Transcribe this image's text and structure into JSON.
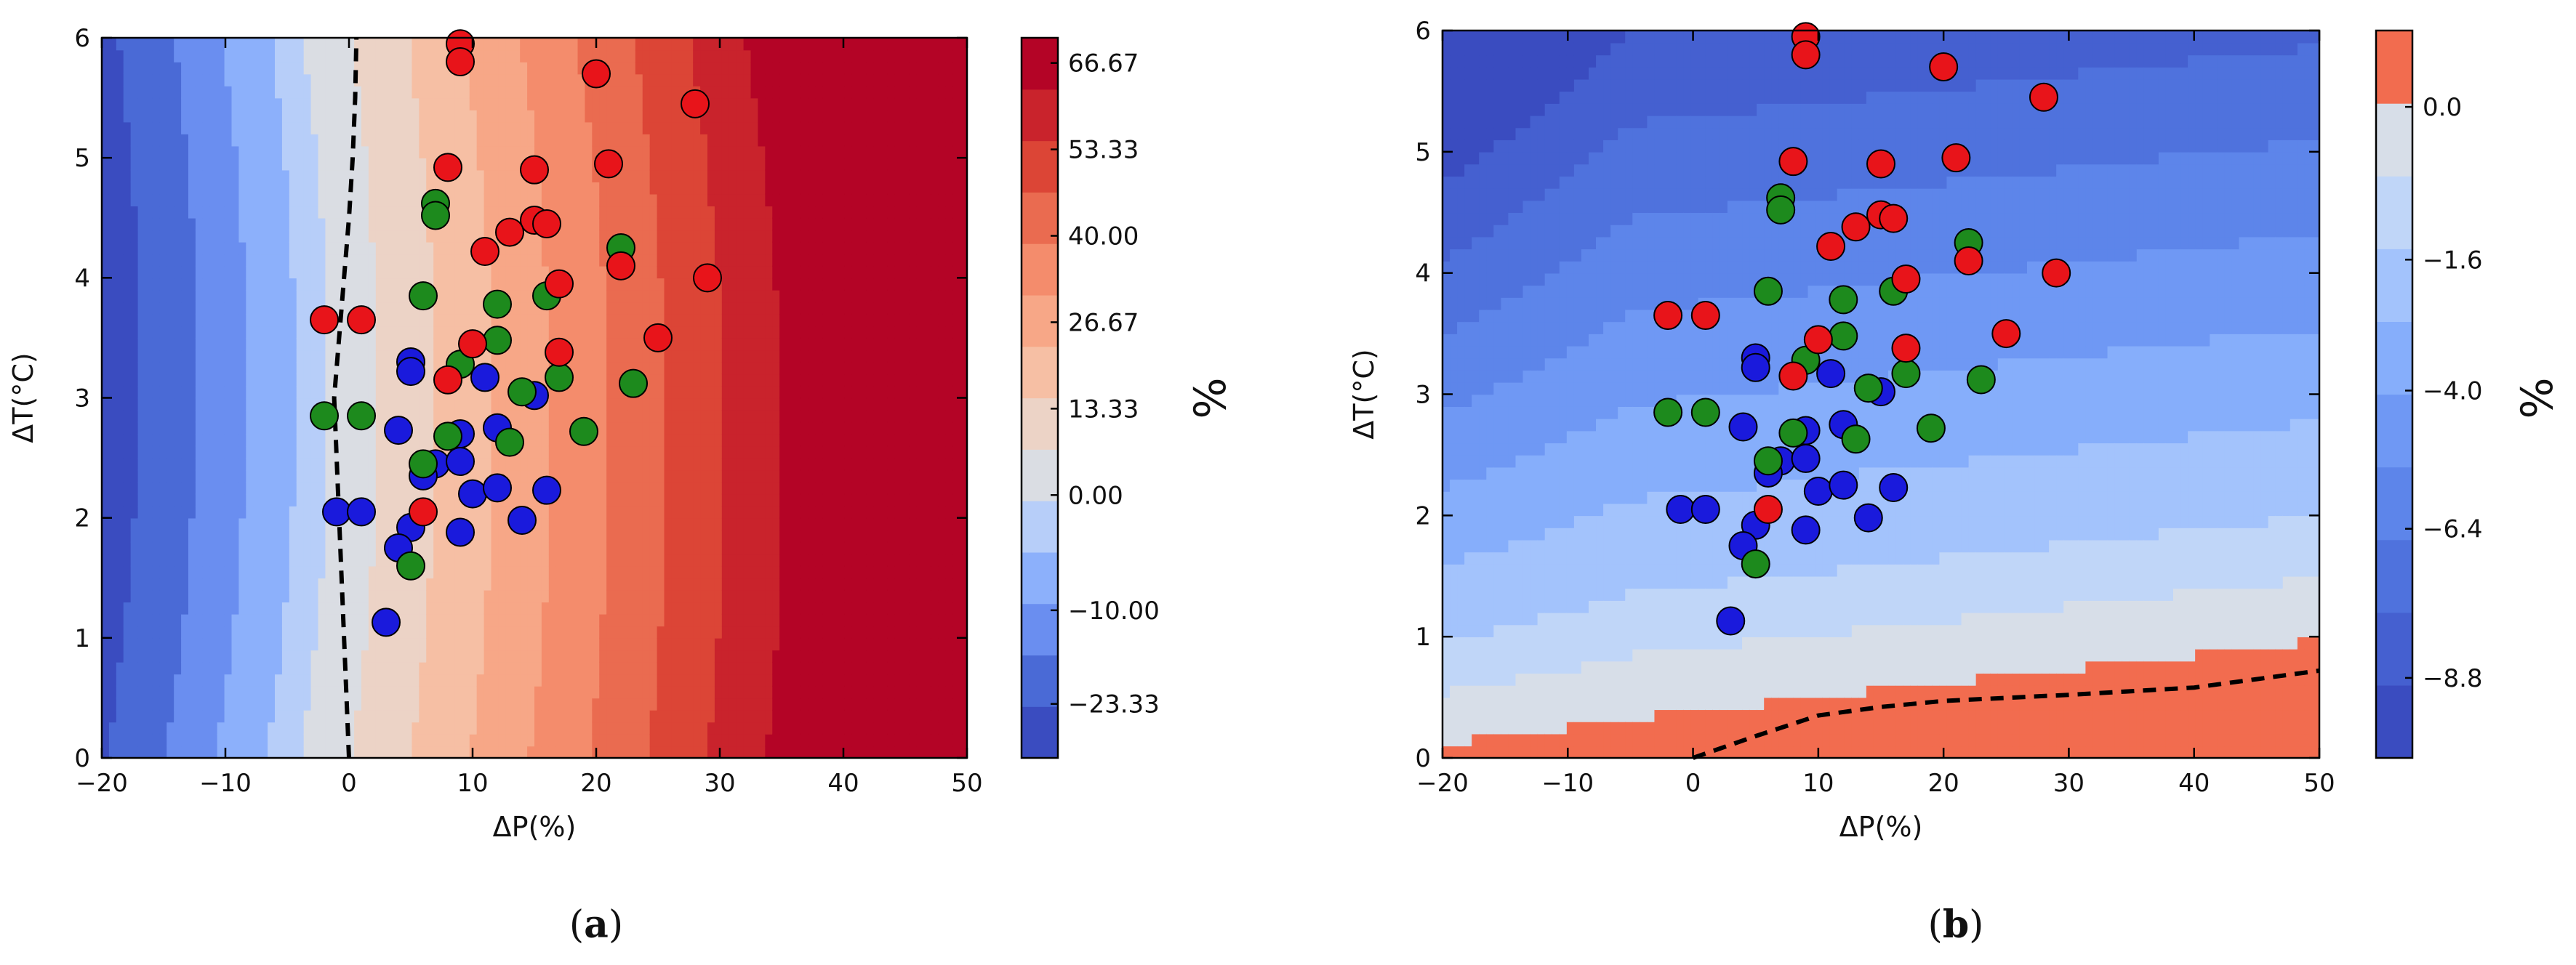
{
  "colors": {
    "levels": [
      "#3a4cc0",
      "#4a6ad6",
      "#6a8ef0",
      "#8cb0fb",
      "#b7cef9",
      "#dadde3",
      "#ecd3c6",
      "#f6bfa4",
      "#f7a787",
      "#f48c6c",
      "#ea6b50",
      "#dc4536",
      "#c9232c",
      "#b40426"
    ],
    "diff_pos": "#f26c4f",
    "green": "#1d8a1d",
    "red": "#e8141a",
    "blue": "#1a1adc"
  },
  "chart_data": [
    {
      "id": "a",
      "type": "contour",
      "caption": "a",
      "xlabel": "ΔP(%)",
      "ylabel": "ΔT(°C)",
      "xlim": [
        -20,
        50
      ],
      "ylim": [
        0,
        6
      ],
      "xticks": [
        -20,
        -10,
        0,
        10,
        20,
        30,
        40,
        50
      ],
      "yticks": [
        0,
        1,
        2,
        3,
        4,
        5,
        6
      ],
      "xtick_labels": [
        "−20",
        "−10",
        "0",
        "10",
        "20",
        "30",
        "40",
        "50"
      ],
      "ytick_labels": [
        "0",
        "1",
        "2",
        "3",
        "4",
        "5",
        "6"
      ],
      "colorbar_label": "%",
      "colorbar_ticks": [
        "66.67",
        "53.33",
        "40.00",
        "26.67",
        "13.33",
        "0.00",
        "−10.00",
        "−23.33"
      ],
      "zero_contour": [
        [
          0,
          0
        ],
        [
          -0.2,
          0.5
        ],
        [
          -0.4,
          1
        ],
        [
          -0.6,
          1.5
        ],
        [
          -0.8,
          2
        ],
        [
          -1,
          2.5
        ],
        [
          -1.2,
          3
        ],
        [
          -0.8,
          3.5
        ],
        [
          -0.4,
          4
        ],
        [
          0,
          4.5
        ],
        [
          0.3,
          5
        ],
        [
          0.5,
          5.5
        ],
        [
          0.6,
          6
        ]
      ]
    },
    {
      "id": "b",
      "type": "contour",
      "caption": "b",
      "xlabel": "ΔP(%)",
      "ylabel": "ΔT(°C)",
      "xlim": [
        -20,
        50
      ],
      "ylim": [
        0,
        6
      ],
      "xticks": [
        -20,
        -10,
        0,
        10,
        20,
        30,
        40,
        50
      ],
      "yticks": [
        0,
        1,
        2,
        3,
        4,
        5,
        6
      ],
      "xtick_labels": [
        "−20",
        "−10",
        "0",
        "10",
        "20",
        "30",
        "40",
        "50"
      ],
      "ytick_labels": [
        "0",
        "1",
        "2",
        "3",
        "4",
        "5",
        "6"
      ],
      "colorbar_label": "%",
      "colorbar_ticks": [
        "0.0",
        "−1.6",
        "−4.0",
        "−6.4",
        "−8.8"
      ],
      "zero_contour": [
        [
          0,
          0
        ],
        [
          5,
          0.18
        ],
        [
          10,
          0.35
        ],
        [
          15,
          0.42
        ],
        [
          20,
          0.47
        ],
        [
          30,
          0.52
        ],
        [
          40,
          0.58
        ],
        [
          45,
          0.65
        ],
        [
          50,
          0.72
        ]
      ]
    }
  ],
  "scatter": {
    "red": [
      [
        9,
        5.95
      ],
      [
        9,
        5.8
      ],
      [
        20,
        5.7
      ],
      [
        28,
        5.45
      ],
      [
        8,
        4.92
      ],
      [
        15,
        4.9
      ],
      [
        21,
        4.95
      ],
      [
        15,
        4.48
      ],
      [
        16,
        4.45
      ],
      [
        13,
        4.38
      ],
      [
        11,
        4.22
      ],
      [
        22,
        4.1
      ],
      [
        17,
        3.95
      ],
      [
        29,
        4.0
      ],
      [
        -2,
        3.65
      ],
      [
        1,
        3.65
      ],
      [
        25,
        3.5
      ],
      [
        10,
        3.45
      ],
      [
        17,
        3.38
      ],
      [
        8,
        3.15
      ],
      [
        6,
        2.05
      ]
    ],
    "green": [
      [
        7,
        4.62
      ],
      [
        7,
        4.52
      ],
      [
        22,
        4.25
      ],
      [
        12,
        3.78
      ],
      [
        6,
        3.85
      ],
      [
        16,
        3.85
      ],
      [
        12,
        3.48
      ],
      [
        9,
        3.28
      ],
      [
        17,
        3.17
      ],
      [
        14,
        3.05
      ],
      [
        23,
        3.12
      ],
      [
        -2,
        2.85
      ],
      [
        1,
        2.85
      ],
      [
        8,
        2.68
      ],
      [
        13,
        2.63
      ],
      [
        19,
        2.72
      ],
      [
        6,
        2.45
      ],
      [
        5,
        1.6
      ]
    ],
    "blue": [
      [
        5,
        3.3
      ],
      [
        5,
        3.22
      ],
      [
        11,
        3.17
      ],
      [
        15,
        3.02
      ],
      [
        4,
        2.73
      ],
      [
        9,
        2.7
      ],
      [
        12,
        2.75
      ],
      [
        7,
        2.45
      ],
      [
        9,
        2.47
      ],
      [
        6,
        2.35
      ],
      [
        10,
        2.2
      ],
      [
        12,
        2.25
      ],
      [
        16,
        2.23
      ],
      [
        -1,
        2.05
      ],
      [
        1,
        2.05
      ],
      [
        14,
        1.98
      ],
      [
        5,
        1.92
      ],
      [
        9,
        1.88
      ],
      [
        4,
        1.75
      ],
      [
        3,
        1.13
      ]
    ]
  }
}
